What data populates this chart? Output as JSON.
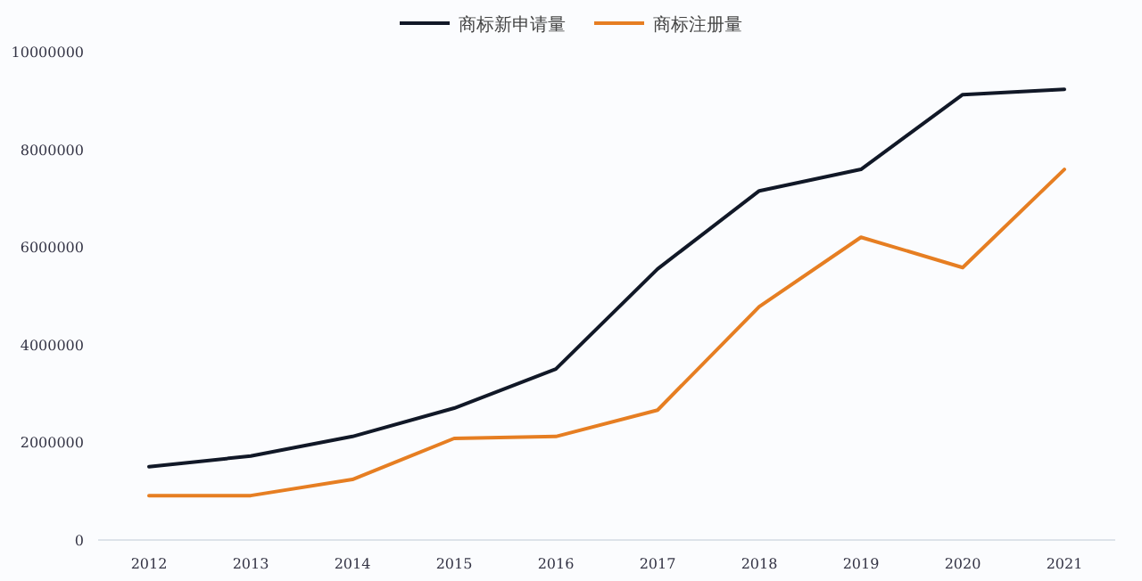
{
  "chart_data": {
    "type": "line",
    "categories": [
      "2012",
      "2013",
      "2014",
      "2015",
      "2016",
      "2017",
      "2018",
      "2019",
      "2020",
      "2021"
    ],
    "series": [
      {
        "name": "商标新申请量",
        "color": "#111827",
        "values": [
          1500000,
          1720000,
          2120000,
          2700000,
          3500000,
          5550000,
          7150000,
          7590000,
          9120000,
          9230000
        ]
      },
      {
        "name": "商标注册量",
        "color": "#e67e22",
        "values": [
          910000,
          910000,
          1240000,
          2080000,
          2120000,
          2660000,
          4780000,
          6200000,
          5580000,
          7590000
        ]
      }
    ],
    "ylim": [
      0,
      10000000
    ],
    "yticks": [
      0,
      2000000,
      4000000,
      6000000,
      8000000,
      10000000
    ],
    "grid": false,
    "legend": "top",
    "marker": "none",
    "line_style": "solid"
  }
}
